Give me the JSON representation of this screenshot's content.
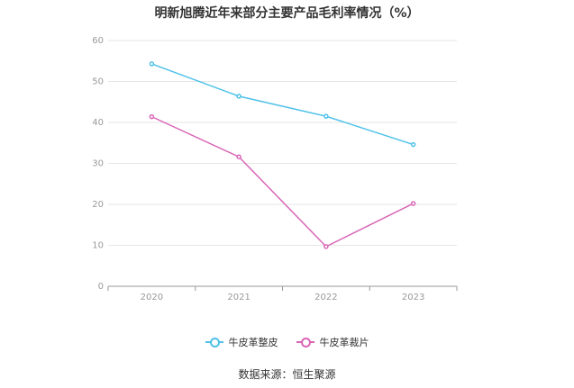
{
  "chart_data": {
    "type": "line",
    "title": "明新旭腾近年来部分主要产品毛利率情况（%）",
    "categories": [
      "2020",
      "2021",
      "2022",
      "2023"
    ],
    "ylim": [
      0,
      60
    ],
    "yticks": [
      0,
      10,
      20,
      30,
      40,
      50,
      60
    ],
    "grid": true,
    "legend_position": "bottom",
    "series": [
      {
        "name": "牛皮革整皮",
        "color": "#4fc1e9",
        "values": [
          54.3,
          46.4,
          41.5,
          34.6
        ]
      },
      {
        "name": "牛皮革裁片",
        "color": "#d966b7",
        "values": [
          41.4,
          31.6,
          9.7,
          20.2
        ]
      }
    ]
  },
  "source": "数据来源：恒生聚源"
}
